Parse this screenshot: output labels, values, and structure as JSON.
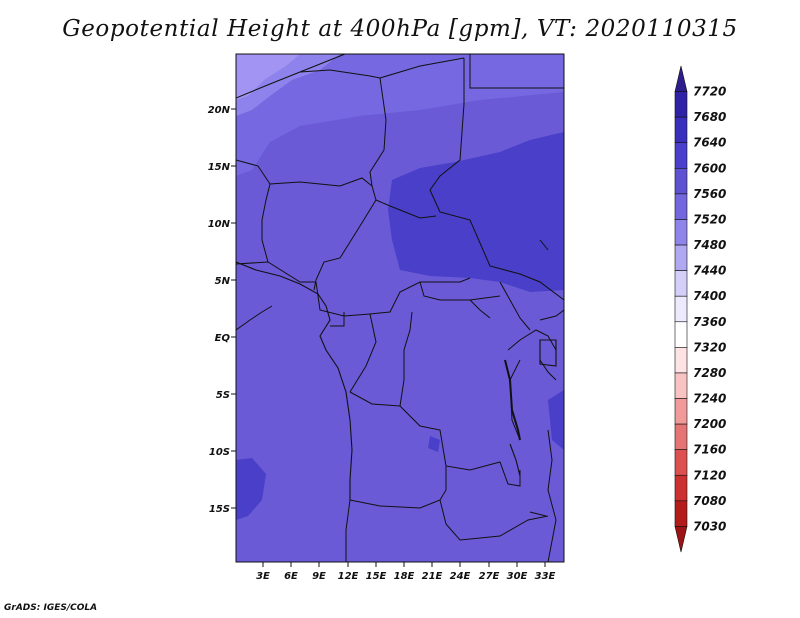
{
  "title": "Geopotential Height at 400hPa [gpm], VT: 2020110315",
  "credit": "GrADS: IGES/COLA",
  "map": {
    "lat_labels": [
      "20N",
      "15N",
      "10N",
      "5N",
      "EQ",
      "5S",
      "10S",
      "15S"
    ],
    "lon_labels": [
      "3E",
      "6E",
      "9E",
      "12E",
      "15E",
      "18E",
      "21E",
      "24E",
      "27E",
      "30E",
      "33E"
    ],
    "dominant_color": "#6a5ad6"
  },
  "colorbar": {
    "levels": [
      "7720",
      "7680",
      "7640",
      "7600",
      "7560",
      "7520",
      "7480",
      "7440",
      "7400",
      "7360",
      "7320",
      "7280",
      "7240",
      "7200",
      "7160",
      "7120",
      "7080",
      "7030"
    ],
    "colors": [
      "#2d1d8f",
      "#3022a6",
      "#3a2fbd",
      "#4a3fcc",
      "#5e52d2",
      "#7366de",
      "#8f84ea",
      "#b1a8f2",
      "#d3cff8",
      "#eceafc",
      "#ffffff",
      "#fde3e3",
      "#f8c3c3",
      "#f09a9a",
      "#e77474",
      "#dc5050",
      "#cc3030",
      "#b41c1c",
      "#9e1414"
    ]
  }
}
